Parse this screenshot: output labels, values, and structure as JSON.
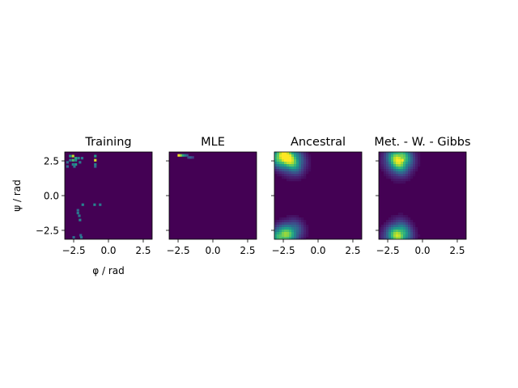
{
  "chart_data": [
    {
      "type": "heatmap",
      "title": "Training",
      "xlabel": "φ / rad",
      "ylabel": "ψ / rad",
      "xlim": [
        -3.14159,
        3.14159
      ],
      "ylim": [
        -3.14159,
        3.14159
      ],
      "xticks": [
        -2.5,
        0.0,
        2.5
      ],
      "xtick_labels": [
        "−2.5",
        "0.0",
        "2.5"
      ],
      "yticks": [
        -2.5,
        0.0,
        2.5
      ],
      "ytick_labels": [
        "−2.5",
        "0.0",
        "2.5"
      ],
      "show_yticklabels": true,
      "colormap": "viridis",
      "background_color": "#440154",
      "grid": false,
      "blobs": [],
      "cells": [
        {
          "x": -2.75,
          "y": 2.85,
          "v": 0.55
        },
        {
          "x": -2.55,
          "y": 2.85,
          "v": 0.9
        },
        {
          "x": -2.35,
          "y": 2.7,
          "v": 0.6
        },
        {
          "x": -2.15,
          "y": 2.7,
          "v": 0.45
        },
        {
          "x": -2.75,
          "y": 2.55,
          "v": 0.4
        },
        {
          "x": -2.55,
          "y": 2.55,
          "v": 0.7
        },
        {
          "x": -2.35,
          "y": 2.55,
          "v": 0.5
        },
        {
          "x": -2.95,
          "y": 2.4,
          "v": 0.35
        },
        {
          "x": -2.55,
          "y": 2.25,
          "v": 0.45
        },
        {
          "x": -2.35,
          "y": 2.25,
          "v": 0.55
        },
        {
          "x": -2.05,
          "y": 2.4,
          "v": 0.4
        },
        {
          "x": -2.95,
          "y": 2.1,
          "v": 0.35
        },
        {
          "x": -2.45,
          "y": 2.1,
          "v": 0.4
        },
        {
          "x": -1.9,
          "y": 2.7,
          "v": 0.4
        },
        {
          "x": -0.95,
          "y": 2.85,
          "v": 0.55
        },
        {
          "x": -0.95,
          "y": 2.55,
          "v": 0.95
        },
        {
          "x": -0.95,
          "y": 2.25,
          "v": 0.45
        },
        {
          "x": -0.95,
          "y": 2.1,
          "v": 0.35
        },
        {
          "x": -1.85,
          "y": -0.65,
          "v": 0.45
        },
        {
          "x": -1.0,
          "y": -0.65,
          "v": 0.45
        },
        {
          "x": -0.6,
          "y": -0.65,
          "v": 0.4
        },
        {
          "x": -2.2,
          "y": -1.05,
          "v": 0.35
        },
        {
          "x": -2.2,
          "y": -1.25,
          "v": 0.4
        },
        {
          "x": -2.1,
          "y": -1.45,
          "v": 0.4
        },
        {
          "x": -2.05,
          "y": -1.75,
          "v": 0.45
        },
        {
          "x": -2.0,
          "y": -2.85,
          "v": 0.35
        },
        {
          "x": -2.5,
          "y": -3.0,
          "v": 0.35
        },
        {
          "x": -1.95,
          "y": -3.0,
          "v": 0.4
        }
      ]
    },
    {
      "type": "heatmap",
      "title": "MLE",
      "xlim": [
        -3.14159,
        3.14159
      ],
      "ylim": [
        -3.14159,
        3.14159
      ],
      "xticks": [
        -2.5,
        0.0,
        2.5
      ],
      "xtick_labels": [
        "−2.5",
        "0.0",
        "2.5"
      ],
      "yticks": [
        -2.5,
        0.0,
        2.5
      ],
      "show_yticklabels": false,
      "colormap": "viridis",
      "background_color": "#440154",
      "grid": false,
      "blobs": [],
      "cells": [
        {
          "x": -2.45,
          "y": 2.9,
          "v": 1.0
        },
        {
          "x": -2.3,
          "y": 2.9,
          "v": 0.85
        },
        {
          "x": -2.15,
          "y": 2.9,
          "v": 0.6
        },
        {
          "x": -2.0,
          "y": 2.9,
          "v": 0.45
        },
        {
          "x": -1.85,
          "y": 2.9,
          "v": 0.3
        },
        {
          "x": -1.75,
          "y": 2.75,
          "v": 0.25
        },
        {
          "x": -1.6,
          "y": 2.75,
          "v": 0.3
        },
        {
          "x": -1.45,
          "y": 2.75,
          "v": 0.2
        }
      ]
    },
    {
      "type": "heatmap",
      "title": "Ancestral",
      "xlim": [
        -3.14159,
        3.14159
      ],
      "ylim": [
        -3.14159,
        3.14159
      ],
      "xticks": [
        -2.5,
        0.0,
        2.5
      ],
      "xtick_labels": [
        "−2.5",
        "0.0",
        "2.5"
      ],
      "yticks": [
        -2.5,
        0.0,
        2.5
      ],
      "show_yticklabels": false,
      "colormap": "viridis",
      "background_color": "#440154",
      "grid": false,
      "blobs": [
        {
          "cx": -2.5,
          "cy": 2.8,
          "sx": 0.6,
          "sy": 0.5,
          "amp": 1.0
        },
        {
          "cx": -1.7,
          "cy": 2.3,
          "sx": 0.5,
          "sy": 0.55,
          "amp": 0.45
        },
        {
          "cx": -2.6,
          "cy": -2.9,
          "sx": 0.55,
          "sy": 0.45,
          "amp": 0.75
        },
        {
          "cx": -1.8,
          "cy": -2.5,
          "sx": 0.5,
          "sy": 0.5,
          "amp": 0.35
        }
      ],
      "cells": []
    },
    {
      "type": "heatmap",
      "title": "Met. - W. - Gibbs",
      "xlim": [
        -3.14159,
        3.14159
      ],
      "ylim": [
        -3.14159,
        3.14159
      ],
      "xticks": [
        -2.5,
        0.0,
        2.5
      ],
      "xtick_labels": [
        "−2.5",
        "0.0",
        "2.5"
      ],
      "yticks": [
        -2.5,
        0.0,
        2.5
      ],
      "show_yticklabels": false,
      "colormap": "viridis",
      "background_color": "#440154",
      "grid": false,
      "blobs": [
        {
          "cx": -1.7,
          "cy": 2.7,
          "sx": 0.6,
          "sy": 0.55,
          "amp": 0.75
        },
        {
          "cx": -1.6,
          "cy": 2.2,
          "sx": 0.5,
          "sy": 0.6,
          "amp": 0.3
        },
        {
          "cx": -1.8,
          "cy": -2.9,
          "sx": 0.6,
          "sy": 0.45,
          "amp": 0.65
        },
        {
          "cx": -1.6,
          "cy": -2.5,
          "sx": 0.5,
          "sy": 0.55,
          "amp": 0.3
        }
      ],
      "cells": [
        {
          "x": -1.45,
          "y": 2.55,
          "v": 1.0
        },
        {
          "x": -2.0,
          "y": 2.55,
          "v": 0.9
        }
      ]
    }
  ]
}
